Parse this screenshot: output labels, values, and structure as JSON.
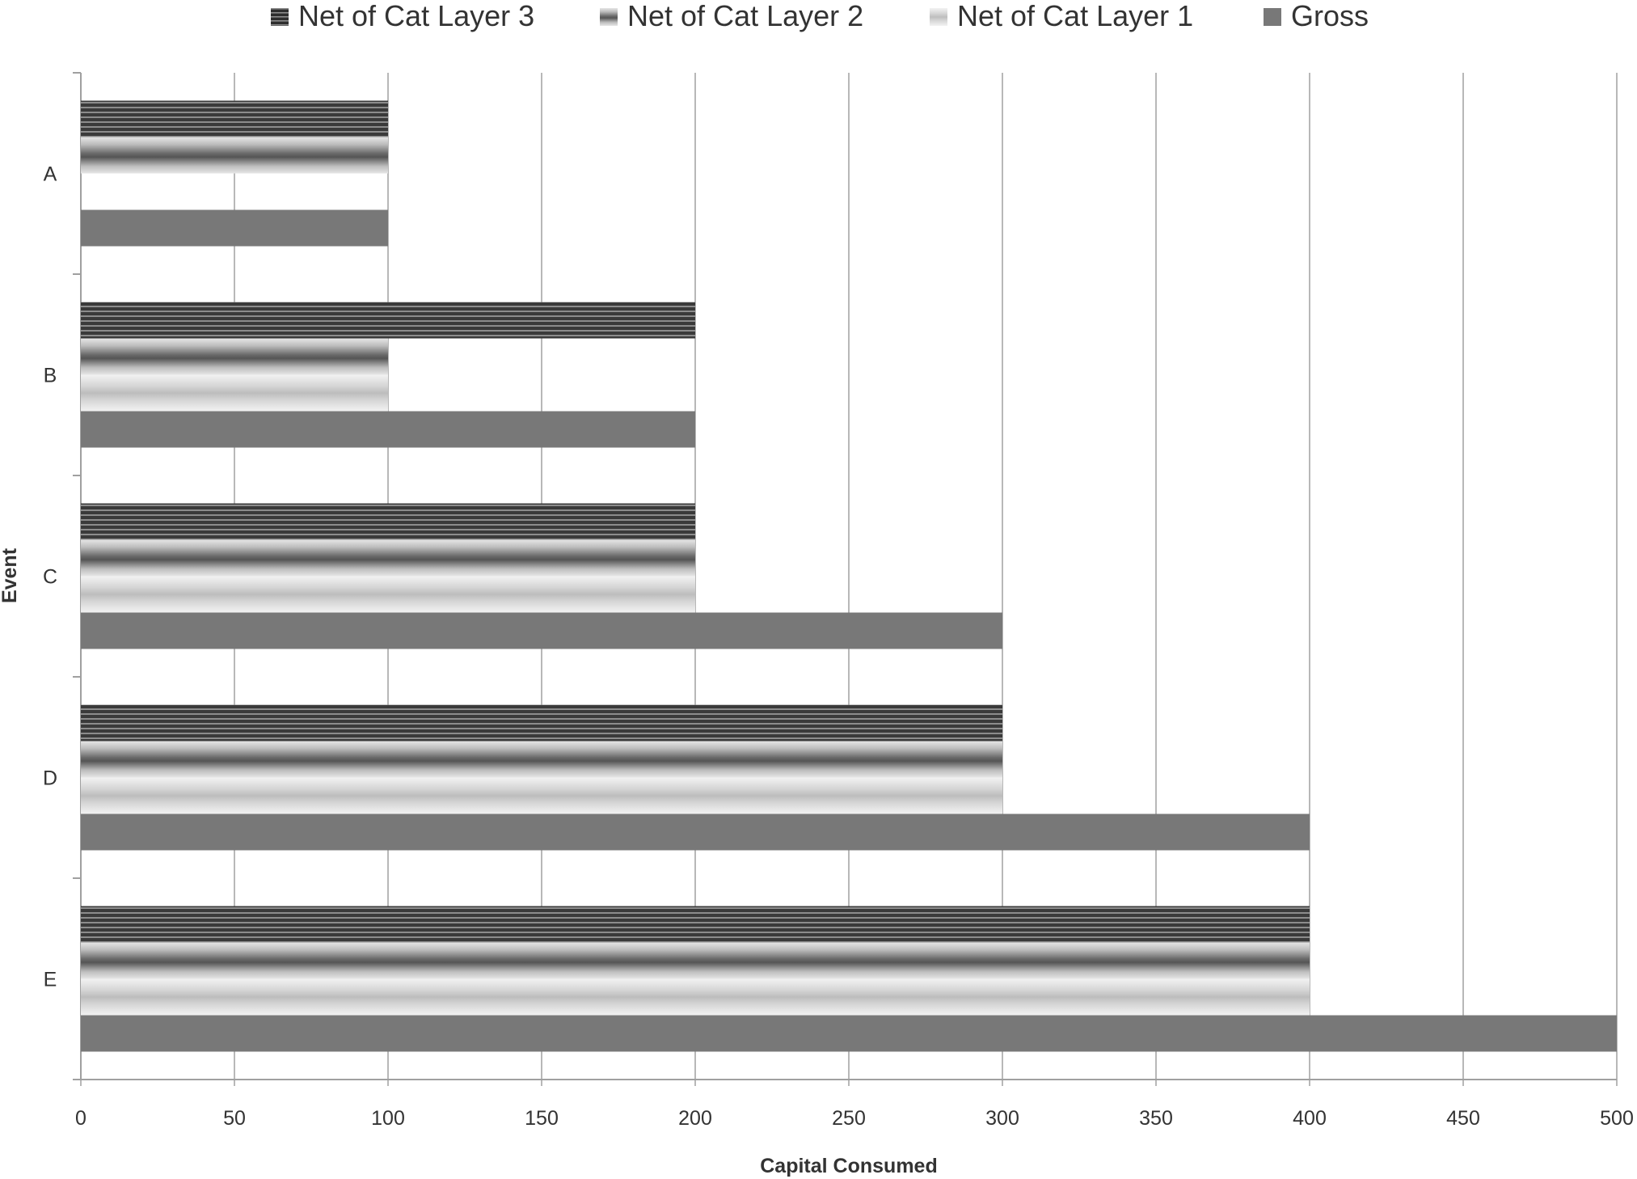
{
  "chart_data": {
    "type": "bar",
    "orientation": "horizontal",
    "categories": [
      "A",
      "B",
      "C",
      "D",
      "E"
    ],
    "series": [
      {
        "name": "Net of Cat Layer 3",
        "values": [
          100,
          200,
          200,
          300,
          400
        ],
        "style": "dark-stripes"
      },
      {
        "name": "Net of Cat Layer 2",
        "values": [
          100,
          100,
          200,
          300,
          400
        ],
        "style": "mid-gradient"
      },
      {
        "name": "Net of Cat Layer 1",
        "values": [
          0,
          100,
          200,
          300,
          400
        ],
        "style": "light-gradient"
      },
      {
        "name": "Gross",
        "values": [
          100,
          200,
          300,
          400,
          500
        ],
        "style": "solid-gray"
      }
    ],
    "xlabel": "Capital Consumed",
    "ylabel": "Event",
    "xlim": [
      0,
      500
    ],
    "xticks": [
      0,
      50,
      100,
      150,
      200,
      250,
      300,
      350,
      400,
      450,
      500
    ],
    "grid": "vertical",
    "legend_position": "top",
    "colors": {
      "layer3_dark": "#3a3a3a",
      "layer3_light": "#9a9a9a",
      "layer2_dark": "#555555",
      "layer2_light": "#e6e6e6",
      "layer1_dark": "#bdbdbd",
      "layer1_light": "#f2f2f2",
      "gross": "#787878",
      "grid": "#b8b8b8",
      "axis": "#a0a0a0",
      "text": "#333333"
    }
  }
}
